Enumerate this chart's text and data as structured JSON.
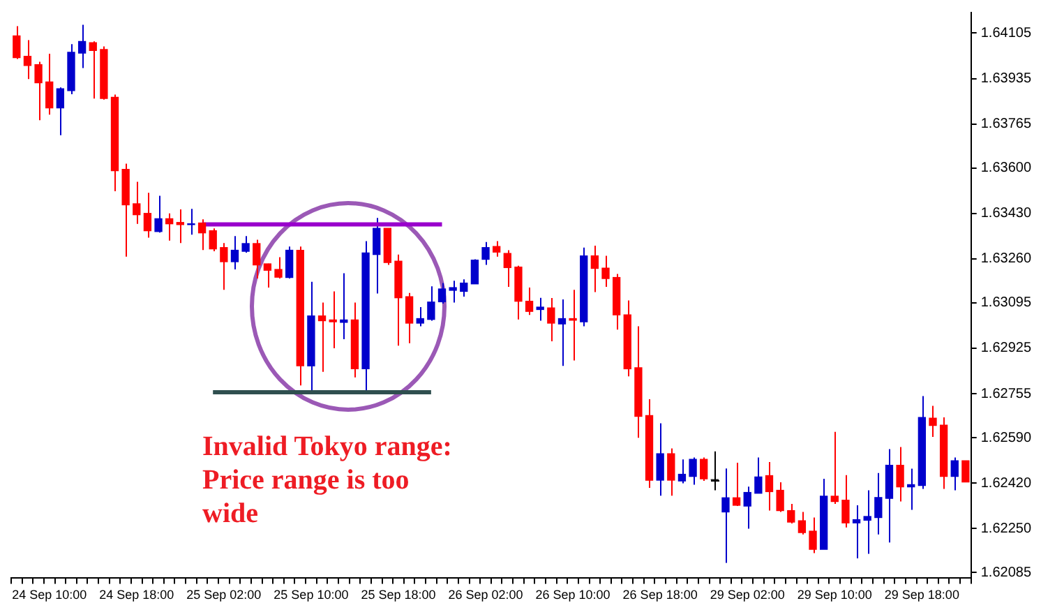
{
  "chart_data": {
    "type": "candlestick",
    "categories": [
      null,
      null,
      null,
      "24 Sep 10:00",
      null,
      null,
      null,
      null,
      null,
      null,
      null,
      "24 Sep 18:00",
      null,
      null,
      null,
      null,
      null,
      null,
      null,
      "25 Sep 02:00",
      null,
      null,
      null,
      null,
      null,
      null,
      null,
      "25 Sep 10:00",
      null,
      null,
      null,
      null,
      null,
      null,
      null,
      "25 Sep 18:00",
      null,
      null,
      null,
      null,
      null,
      null,
      null,
      "26 Sep 02:00",
      null,
      null,
      null,
      null,
      null,
      null,
      null,
      "26 Sep 10:00",
      null,
      null,
      null,
      null,
      null,
      null,
      null,
      "26 Sep 18:00",
      null,
      null,
      null,
      null,
      null,
      null,
      null,
      "29 Sep 02:00",
      null,
      null,
      null,
      null,
      null,
      null,
      null,
      "29 Sep 10:00",
      null,
      null,
      null,
      null,
      null,
      null,
      null,
      "29 Sep 18:00",
      null,
      null,
      null,
      null
    ],
    "ohlc": [
      [
        1.64095,
        1.64131,
        1.64008,
        1.64013
      ],
      [
        1.64018,
        1.64079,
        1.63933,
        1.63984
      ],
      [
        1.63987,
        1.63998,
        1.63779,
        1.63919
      ],
      [
        1.63922,
        1.64028,
        1.638,
        1.63825
      ],
      [
        1.63825,
        1.63902,
        1.63723,
        1.63897
      ],
      [
        1.6389,
        1.64064,
        1.63876,
        1.64033
      ],
      [
        1.6403,
        1.64136,
        1.63974,
        1.64074
      ],
      [
        1.64069,
        1.64074,
        1.6386,
        1.6404
      ],
      [
        1.64044,
        1.64055,
        1.63856,
        1.6386
      ],
      [
        1.63865,
        1.63875,
        1.63513,
        1.6359
      ],
      [
        1.63595,
        1.63616,
        1.63268,
        1.63462
      ],
      [
        1.63466,
        1.63548,
        1.63391,
        1.63425
      ],
      [
        1.6343,
        1.63507,
        1.63339,
        1.63365
      ],
      [
        1.63362,
        1.63496,
        1.63358,
        1.6341
      ],
      [
        1.6341,
        1.6343,
        1.63328,
        1.63391
      ],
      [
        1.63396,
        1.63445,
        1.63319,
        1.63388
      ],
      [
        1.63388,
        1.63447,
        1.6335,
        1.63391
      ],
      [
        1.63394,
        1.63408,
        1.63293,
        1.63357
      ],
      [
        1.63365,
        1.63374,
        1.63288,
        1.63297
      ],
      [
        1.63302,
        1.63319,
        1.63144,
        1.63249
      ],
      [
        1.63249,
        1.63345,
        1.6322,
        1.63292
      ],
      [
        1.63288,
        1.63345,
        1.63283,
        1.63317
      ],
      [
        1.63317,
        1.63331,
        1.63186,
        1.63237
      ],
      [
        1.63241,
        1.63242,
        1.63152,
        1.63217
      ],
      [
        1.6322,
        1.63266,
        1.63186,
        1.63191
      ],
      [
        1.6319,
        1.63306,
        1.63186,
        1.63292
      ],
      [
        1.63292,
        1.63306,
        1.62786,
        1.62859
      ],
      [
        1.62859,
        1.63174,
        1.62765,
        1.63046
      ],
      [
        1.63046,
        1.63096,
        1.62837,
        1.63028
      ],
      [
        1.63031,
        1.63138,
        1.62925,
        1.63024
      ],
      [
        1.63022,
        1.63206,
        1.62959,
        1.63031
      ],
      [
        1.63031,
        1.63096,
        1.62816,
        1.62848
      ],
      [
        1.62848,
        1.63326,
        1.62765,
        1.63282
      ],
      [
        1.63276,
        1.63413,
        1.6313,
        1.63374
      ],
      [
        1.63374,
        1.63374,
        1.63237,
        1.63246
      ],
      [
        1.63251,
        1.63276,
        1.62935,
        1.63114
      ],
      [
        1.63118,
        1.63132,
        1.62944,
        1.63019
      ],
      [
        1.63019,
        1.63079,
        1.63007,
        1.63036
      ],
      [
        1.63033,
        1.63157,
        1.63028,
        1.63098
      ],
      [
        1.63099,
        1.63169,
        1.63092,
        1.63147
      ],
      [
        1.63142,
        1.63178,
        1.63096,
        1.63152
      ],
      [
        1.63138,
        1.63183,
        1.63118,
        1.63169
      ],
      [
        1.63166,
        1.63258,
        1.63166,
        1.63255
      ],
      [
        1.63258,
        1.63323,
        1.63237,
        1.63302
      ],
      [
        1.63306,
        1.63326,
        1.63268,
        1.63285
      ],
      [
        1.6328,
        1.63292,
        1.63155,
        1.63227
      ],
      [
        1.63229,
        1.63234,
        1.63033,
        1.63101
      ],
      [
        1.63101,
        1.63152,
        1.6305,
        1.63063
      ],
      [
        1.6307,
        1.63114,
        1.63028,
        1.63079
      ],
      [
        1.63076,
        1.63113,
        1.62951,
        1.63019
      ],
      [
        1.63016,
        1.63108,
        1.62859,
        1.63036
      ],
      [
        1.63036,
        1.63144,
        1.62879,
        1.6303
      ],
      [
        1.63024,
        1.63302,
        1.63007,
        1.63271
      ],
      [
        1.63271,
        1.63309,
        1.63135,
        1.63224
      ],
      [
        1.63225,
        1.63271,
        1.63155,
        1.63186
      ],
      [
        1.6319,
        1.63203,
        1.62995,
        1.6305
      ],
      [
        1.6305,
        1.63104,
        1.6282,
        1.62848
      ],
      [
        1.62852,
        1.63007,
        1.6259,
        1.6267
      ],
      [
        1.62673,
        1.62734,
        1.62402,
        1.62431
      ],
      [
        1.62431,
        1.62644,
        1.62373,
        1.6253
      ],
      [
        1.6253,
        1.6255,
        1.62373,
        1.62431
      ],
      [
        1.62428,
        1.62509,
        1.62419,
        1.62453
      ],
      [
        1.62445,
        1.62516,
        1.62414,
        1.62509
      ],
      [
        1.62509,
        1.62516,
        1.62428,
        1.62436
      ],
      [
        1.62433,
        1.62539,
        1.62393,
        1.62433
      ],
      [
        1.62312,
        1.62475,
        1.62121,
        1.62365
      ],
      [
        1.62365,
        1.62496,
        1.62334,
        1.62337
      ],
      [
        1.62334,
        1.62407,
        1.62249,
        1.62385
      ],
      [
        1.62382,
        1.62516,
        1.62382,
        1.62443
      ],
      [
        1.62448,
        1.62499,
        1.62317,
        1.62388
      ],
      [
        1.62393,
        1.62423,
        1.62312,
        1.62317
      ],
      [
        1.62317,
        1.62342,
        1.62269,
        1.62274
      ],
      [
        1.62279,
        1.62312,
        1.62228,
        1.62235
      ],
      [
        1.6224,
        1.62291,
        1.62158,
        1.62172
      ],
      [
        1.62172,
        1.62436,
        1.62172,
        1.62371
      ],
      [
        1.62371,
        1.62612,
        1.62342,
        1.62351
      ],
      [
        1.62356,
        1.6245,
        1.62254,
        1.62271
      ],
      [
        1.62271,
        1.62337,
        1.62138,
        1.62283
      ],
      [
        1.62281,
        1.62393,
        1.62155,
        1.62295
      ],
      [
        1.62291,
        1.62458,
        1.62228,
        1.62366
      ],
      [
        1.62363,
        1.62547,
        1.62198,
        1.62487
      ],
      [
        1.62487,
        1.62555,
        1.62351,
        1.62406
      ],
      [
        1.62406,
        1.62474,
        1.6232,
        1.62414
      ],
      [
        1.62411,
        1.62746,
        1.62398,
        1.62666
      ],
      [
        1.62663,
        1.62709,
        1.62593,
        1.62636
      ],
      [
        1.62637,
        1.62666,
        1.62398,
        1.62445
      ],
      [
        1.62445,
        1.62516,
        1.62393,
        1.62504
      ],
      [
        1.62504,
        1.62504,
        1.62424,
        1.62424
      ]
    ],
    "colors": [
      "#ff0000",
      "#ff0000",
      "#ff0000",
      "#ff0000",
      "#0000cc",
      "#0000cc",
      "#0000cc",
      "#ff0000",
      "#ff0000",
      "#ff0000",
      "#ff0000",
      "#ff0000",
      "#ff0000",
      "#0000cc",
      "#ff0000",
      "#ff0000",
      "#0000cc",
      "#ff0000",
      "#ff0000",
      "#ff0000",
      "#0000cc",
      "#0000cc",
      "#ff0000",
      "#ff0000",
      "#ff0000",
      "#0000cc",
      "#ff0000",
      "#0000cc",
      "#ff0000",
      "#ff0000",
      "#0000cc",
      "#ff0000",
      "#0000cc",
      "#0000cc",
      "#ff0000",
      "#ff0000",
      "#ff0000",
      "#0000cc",
      "#0000cc",
      "#0000cc",
      "#0000cc",
      "#0000cc",
      "#0000cc",
      "#0000cc",
      "#ff0000",
      "#ff0000",
      "#ff0000",
      "#ff0000",
      "#0000cc",
      "#ff0000",
      "#0000cc",
      "#ff0000",
      "#0000cc",
      "#ff0000",
      "#ff0000",
      "#ff0000",
      "#ff0000",
      "#ff0000",
      "#ff0000",
      "#0000cc",
      "#ff0000",
      "#0000cc",
      "#0000cc",
      "#ff0000",
      "#000000",
      "#0000cc",
      "#ff0000",
      "#0000cc",
      "#0000cc",
      "#ff0000",
      "#ff0000",
      "#ff0000",
      "#ff0000",
      "#ff0000",
      "#0000cc",
      "#ff0000",
      "#ff0000",
      "#0000cc",
      "#0000cc",
      "#0000cc",
      "#0000cc",
      "#ff0000",
      "#0000cc",
      "#0000cc",
      "#ff0000",
      "#ff0000",
      "#0000cc",
      "#ff0000"
    ],
    "series": [
      {
        "type": "line",
        "color": "#9900cc",
        "values": [
          null,
          null,
          null,
          null,
          null,
          null,
          null,
          null,
          null,
          null,
          null,
          null,
          null,
          null,
          null,
          null,
          null,
          1.63389,
          1.63389,
          1.63389,
          1.63389,
          1.63389,
          1.63389,
          1.63389,
          1.63389,
          1.63389,
          1.63389,
          1.63389,
          1.63389,
          1.63389,
          1.63389,
          1.63389,
          1.63389,
          1.63389,
          1.63389,
          1.63389,
          1.63389,
          1.63389,
          1.63389,
          1.63389,
          null,
          null,
          null,
          null,
          null,
          null,
          null,
          null,
          null,
          null,
          null,
          null,
          null,
          null,
          null,
          null,
          null,
          null,
          null,
          null,
          null,
          null,
          null,
          null,
          null,
          null,
          null,
          null,
          null,
          null,
          null,
          null,
          null,
          null,
          null,
          null,
          null,
          null,
          null,
          null,
          null,
          null,
          null,
          null,
          null,
          null,
          null,
          null
        ]
      },
      {
        "type": "line",
        "color": "#2f4f4f",
        "values": [
          null,
          null,
          null,
          null,
          null,
          null,
          null,
          null,
          null,
          null,
          null,
          null,
          null,
          null,
          null,
          null,
          null,
          null,
          1.6276,
          1.6276,
          1.6276,
          1.6276,
          1.6276,
          1.6276,
          1.6276,
          1.6276,
          1.6276,
          1.6276,
          1.6276,
          1.6276,
          1.6276,
          1.6276,
          1.6276,
          1.6276,
          1.6276,
          1.6276,
          1.6276,
          1.6276,
          1.6276,
          null,
          null,
          null,
          null,
          null,
          null,
          null,
          null,
          null,
          null,
          null,
          null,
          null,
          null,
          null,
          null,
          null,
          null,
          null,
          null,
          null,
          null,
          null,
          null,
          null,
          null,
          null,
          null,
          null,
          null,
          null,
          null,
          null,
          null,
          null,
          null,
          null,
          null,
          null,
          null,
          null,
          null,
          null,
          null,
          null,
          null,
          null,
          null,
          null
        ]
      }
    ],
    "ylim": [
      1.62064,
      1.64182
    ],
    "yticks": [
      1.64105,
      1.63935,
      1.63765,
      {
        "value": 1.636,
        "label": "1.63600"
      },
      {
        "value": 1.6343,
        "label": "1.63430"
      },
      {
        "value": 1.6326,
        "label": "1.63260"
      },
      1.63095,
      1.62925,
      1.62755,
      {
        "value": 1.6259,
        "label": "1.62590"
      },
      {
        "value": 1.6242,
        "label": "1.62420"
      },
      {
        "value": 1.6225,
        "label": "1.62250"
      },
      1.62085
    ],
    "annotations": [
      "Invalid Tokyo range: Price range is too wide"
    ]
  }
}
